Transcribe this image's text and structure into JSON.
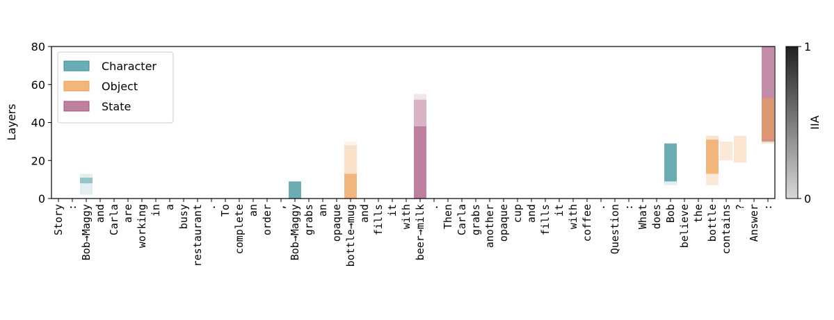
{
  "chart_data": {
    "type": "token-layer-map",
    "ylabel": "Layers",
    "ylim": [
      0,
      80
    ],
    "yticks": [
      0,
      20,
      40,
      60,
      80
    ],
    "categories": [
      "Story",
      ":",
      "Bob→Maggy",
      "and",
      "Carla",
      "are",
      "working",
      "in",
      "a",
      "busy",
      "restaurant",
      ".",
      "To",
      "complete",
      "an",
      "order",
      ",",
      "Bob→Maggy",
      "grabs",
      "an",
      "opaque",
      "bottle→mug",
      "and",
      "fills",
      "it",
      "with",
      "beer→milk",
      ".",
      "Then",
      "Carla",
      "grabs",
      "another",
      "opaque",
      "cup",
      "and",
      "fills",
      "it",
      "with",
      "coffee",
      ".",
      "Question",
      ":",
      "What",
      "does",
      "Bob",
      "believe",
      "the",
      "bottle",
      "contains",
      "?",
      "Answer",
      ":"
    ],
    "series": [
      {
        "name": "State",
        "color": "#a8557f",
        "values": [
          null,
          null,
          null,
          null,
          null,
          null,
          null,
          null,
          null,
          null,
          null,
          null,
          null,
          null,
          null,
          null,
          null,
          null,
          null,
          null,
          null,
          null,
          null,
          null,
          null,
          null,
          [
            [
              0,
              38,
              1
            ],
            [
              38,
              52,
              0.6
            ],
            [
              52,
              55,
              0.2
            ]
          ],
          null,
          null,
          null,
          null,
          null,
          null,
          null,
          null,
          null,
          null,
          null,
          null,
          null,
          null,
          null,
          null,
          null,
          null,
          null,
          null,
          null,
          null,
          null,
          null,
          [
            [
              30,
              80,
              0.9
            ]
          ]
        ]
      },
      {
        "name": "Object",
        "color": "#ee9c50",
        "values": [
          null,
          null,
          null,
          null,
          null,
          null,
          null,
          null,
          null,
          null,
          null,
          null,
          null,
          null,
          null,
          null,
          null,
          null,
          null,
          null,
          null,
          [
            [
              0,
              13,
              1
            ],
            [
              13,
              28,
              0.4
            ],
            [
              28,
              30,
              0.15
            ]
          ],
          null,
          null,
          null,
          null,
          null,
          null,
          null,
          null,
          null,
          null,
          null,
          null,
          null,
          null,
          null,
          null,
          null,
          null,
          null,
          null,
          null,
          null,
          null,
          null,
          null,
          [
            [
              7,
              13,
              0.3
            ],
            [
              13,
              31,
              1
            ],
            [
              31,
              33,
              0.4
            ]
          ],
          [
            [
              20,
              30,
              0.3
            ]
          ],
          [
            [
              19,
              33,
              0.35
            ]
          ],
          null,
          [
            [
              29,
              31,
              0.4
            ],
            [
              31,
              53,
              0.8
            ]
          ]
        ]
      },
      {
        "name": "Character",
        "color": "#3a9199",
        "values": [
          null,
          null,
          [
            [
              2,
              13,
              0.2
            ],
            [
              8,
              11,
              0.6
            ]
          ],
          null,
          null,
          null,
          null,
          null,
          null,
          null,
          null,
          null,
          null,
          null,
          null,
          null,
          null,
          [
            [
              0,
              9,
              1
            ]
          ],
          null,
          null,
          null,
          null,
          null,
          null,
          null,
          null,
          null,
          null,
          null,
          null,
          null,
          null,
          null,
          null,
          null,
          null,
          null,
          null,
          null,
          null,
          null,
          null,
          null,
          null,
          [
            [
              7,
              9,
              0.2
            ],
            [
              9,
              29,
              1
            ]
          ],
          null,
          null,
          null,
          null,
          null,
          null,
          null
        ]
      }
    ],
    "legend_order": [
      "Character",
      "Object",
      "State"
    ],
    "legend": "upper left",
    "colorbar": {
      "label": "IIA",
      "lim": [
        0,
        1
      ],
      "ticks": [
        0,
        1
      ],
      "colors": [
        "#d8d8d8",
        "#202020"
      ]
    }
  }
}
